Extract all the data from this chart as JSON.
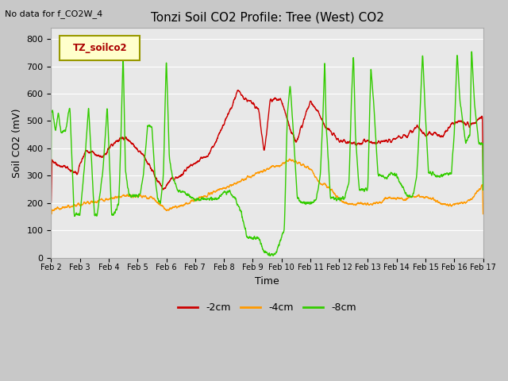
{
  "title": "Tonzi Soil CO2 Profile: Tree (West) CO2",
  "subtitle": "No data for f_CO2W_4",
  "xlabel": "Time",
  "ylabel": "Soil CO2 (mV)",
  "legend_label": "TZ_soilco2",
  "ylim": [
    0,
    840
  ],
  "yticks": [
    0,
    100,
    200,
    300,
    400,
    500,
    600,
    700,
    800
  ],
  "xtick_labels": [
    "Feb 2",
    "Feb 3",
    "Feb 4",
    "Feb 5",
    "Feb 6",
    "Feb 7",
    "Feb 8",
    "Feb 9",
    "Feb 10",
    "Feb 11",
    "Feb 12",
    "Feb 13",
    "Feb 14",
    "Feb 15",
    "Feb 16",
    "Feb 17"
  ],
  "line_colors": {
    "neg2cm": "#cc0000",
    "neg4cm": "#ff9900",
    "neg8cm": "#33cc00"
  },
  "line_labels": [
    "-2cm",
    "-4cm",
    "-8cm"
  ],
  "fig_bg": "#c8c8c8",
  "plot_bg": "#e8e8e8",
  "grid_color": "#ffffff",
  "title_fontsize": 11,
  "axis_label_fontsize": 9,
  "tick_fontsize": 8
}
